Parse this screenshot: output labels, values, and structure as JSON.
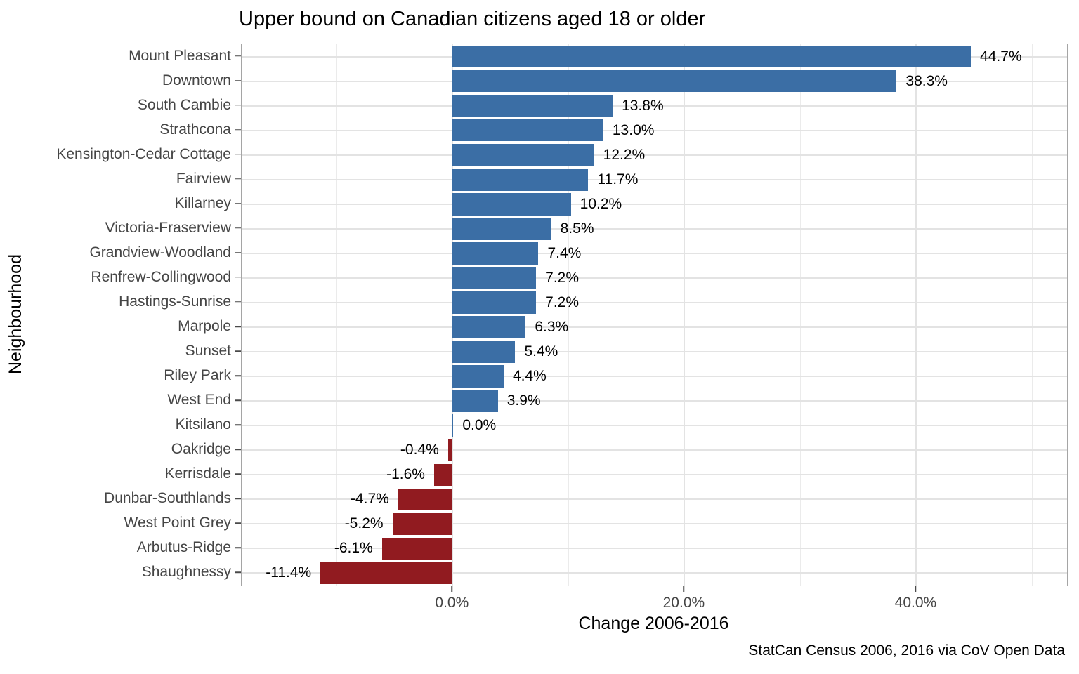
{
  "chart_data": {
    "type": "bar",
    "orientation": "horizontal",
    "title": "Upper bound on Canadian citizens aged 18 or older",
    "xlabel": "Change 2006-2016",
    "ylabel": "Neighbourhood",
    "caption": "StatCan Census 2006, 2016 via CoV Open Data",
    "categories": [
      "Mount Pleasant",
      "Downtown",
      "South Cambie",
      "Strathcona",
      "Kensington-Cedar Cottage",
      "Fairview",
      "Killarney",
      "Victoria-Fraserview",
      "Grandview-Woodland",
      "Renfrew-Collingwood",
      "Hastings-Sunrise",
      "Marpole",
      "Sunset",
      "Riley Park",
      "West End",
      "Kitsilano",
      "Oakridge",
      "Kerrisdale",
      "Dunbar-Southlands",
      "West Point Grey",
      "Arbutus-Ridge",
      "Shaughnessy"
    ],
    "values": [
      44.7,
      38.3,
      13.8,
      13.0,
      12.2,
      11.7,
      10.2,
      8.5,
      7.4,
      7.2,
      7.2,
      6.3,
      5.4,
      4.4,
      3.9,
      0.0,
      -0.4,
      -1.6,
      -4.7,
      -5.2,
      -6.1,
      -11.4
    ],
    "value_labels": [
      "44.7%",
      "38.3%",
      "13.8%",
      "13.0%",
      "12.2%",
      "11.7%",
      "10.2%",
      "8.5%",
      "7.4%",
      "7.2%",
      "7.2%",
      "6.3%",
      "5.4%",
      "4.4%",
      "3.9%",
      "0.0%",
      "-0.4%",
      "-1.6%",
      "-4.7%",
      "-5.2%",
      "-6.1%",
      "-11.4%"
    ],
    "colors": {
      "positive": "#3b6ea5",
      "negative": "#911b20"
    },
    "xlim": [
      -18.2,
      53.0
    ],
    "x_ticks": [
      {
        "value": 0,
        "label": "0.0%"
      },
      {
        "value": 20,
        "label": "20.0%"
      },
      {
        "value": 40,
        "label": "40.0%"
      }
    ],
    "grid": {
      "major": [
        0,
        20,
        40
      ],
      "minor": [
        -10,
        10,
        30,
        50
      ],
      "on": true
    },
    "legend": null
  }
}
